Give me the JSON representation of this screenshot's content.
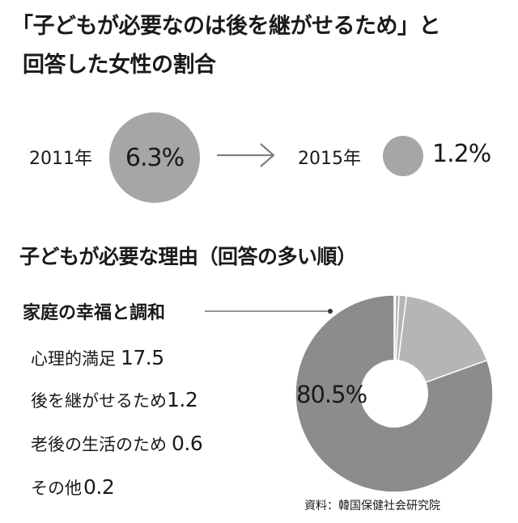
{
  "title": {
    "line1": "「子どもが必要なのは後を継がせるため」と",
    "line2": "回答した女性の割合"
  },
  "comparison": {
    "before": {
      "year": "2011年",
      "value": "6.3%"
    },
    "after": {
      "year": "2015年",
      "value": "1.2%"
    }
  },
  "subtitle": "子どもが必要な理由（回答の多い順）",
  "source": "資料：韓国保健社会研究院",
  "colors": {
    "circle": "#a6a6a6",
    "donut_main": "#8c8c8c",
    "donut_minor": "#b5b5b5",
    "text": "#1a1a1a",
    "bg": "#ffffff"
  },
  "chart_data": [
    {
      "type": "bubble",
      "categories": [
        "2011年",
        "2015年"
      ],
      "values": [
        6.3,
        1.2
      ],
      "labels": [
        "6.3%",
        "1.2%"
      ],
      "unit": "%"
    },
    {
      "type": "pie",
      "donut": true,
      "categories": [
        "家庭の幸福と調和",
        "心理的満足",
        "後を継がせるため",
        "老後の生活のため",
        "その他"
      ],
      "values": [
        80.5,
        17.5,
        1.2,
        0.6,
        0.2
      ],
      "value_labels": [
        "80.5%",
        "17.5",
        "1.2",
        "0.6",
        "0.2"
      ],
      "unit": "%"
    }
  ]
}
